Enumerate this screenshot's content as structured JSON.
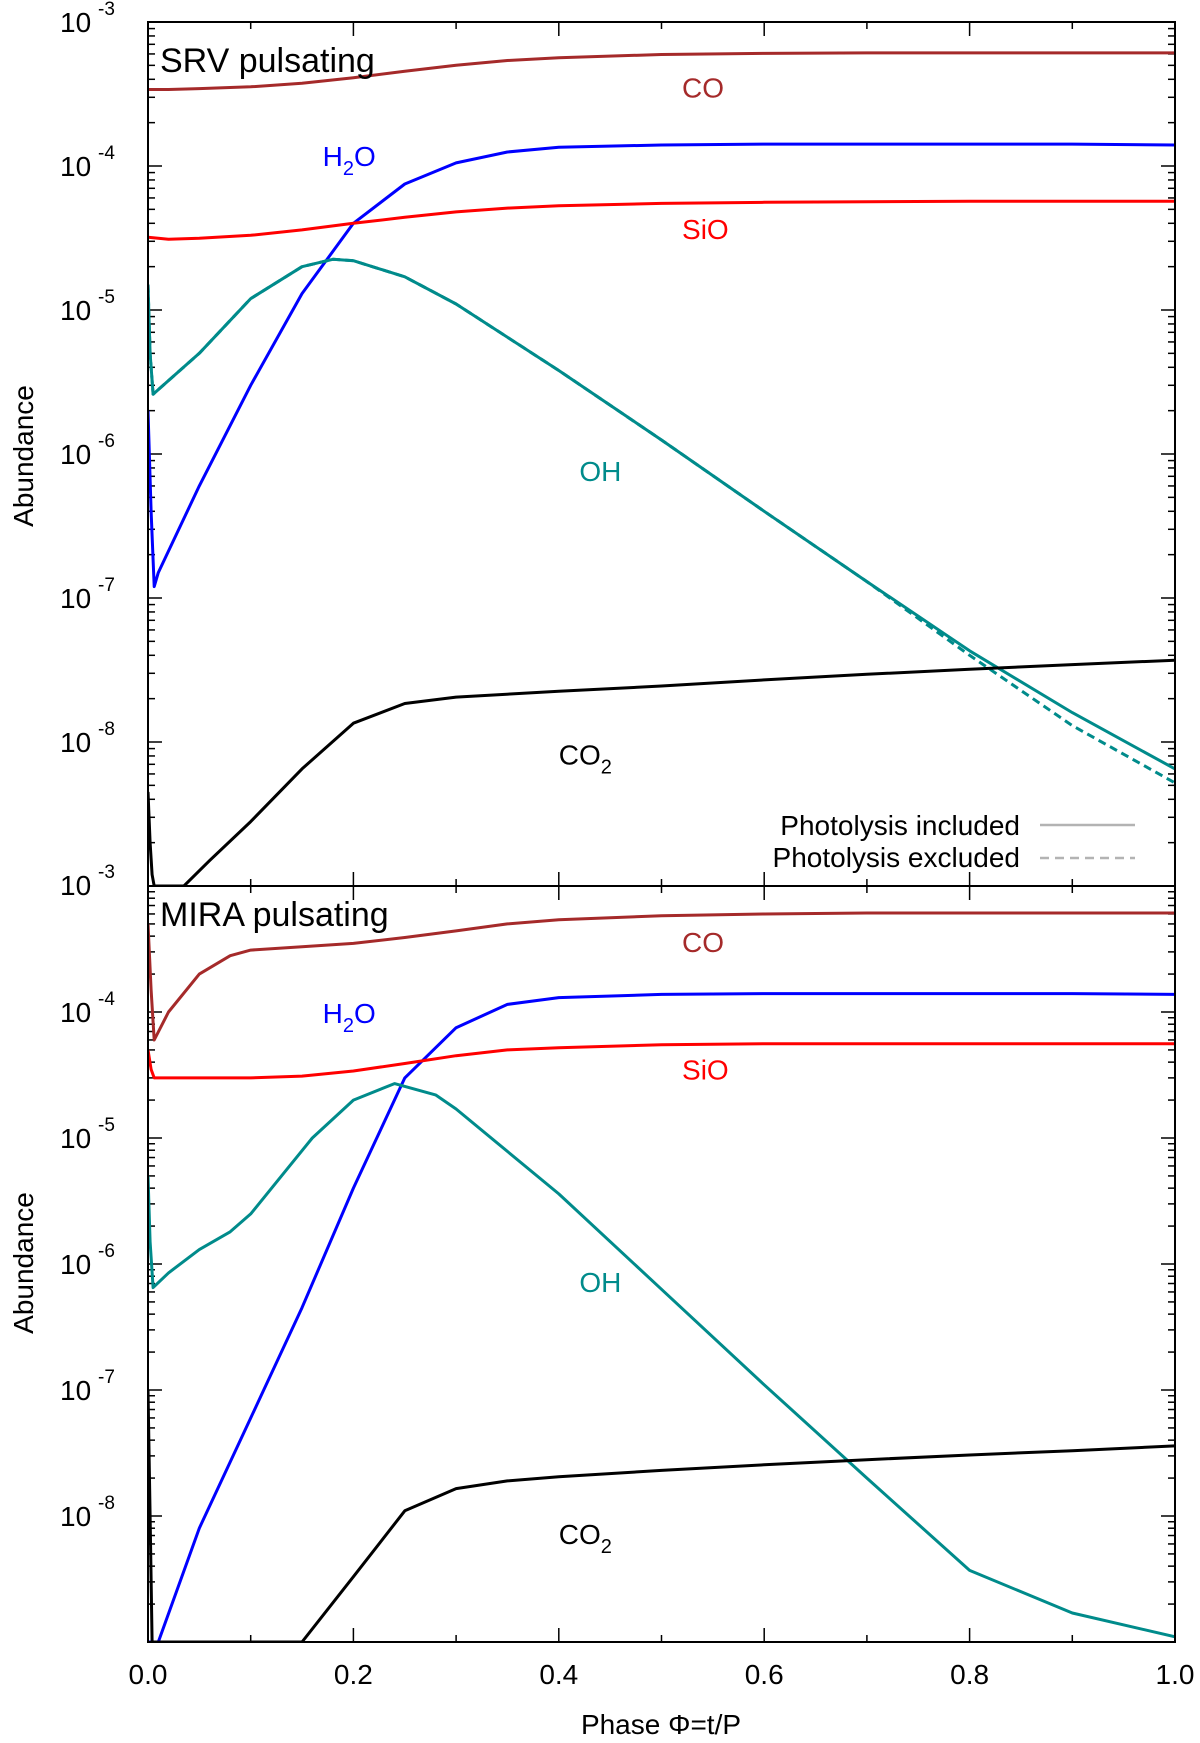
{
  "chart_data": [
    {
      "type": "line",
      "title": "SRV pulsating",
      "xlabel": "",
      "ylabel": "Abundance",
      "yscale": "log",
      "xlim": [
        0,
        1
      ],
      "ylim": [
        1e-09,
        0.001
      ],
      "ytick_values": [
        1e-08,
        1e-07,
        1e-06,
        1e-05,
        0.0001,
        0.001
      ],
      "ytick_labels": [
        {
          "base": "10",
          "exp": "-8"
        },
        {
          "base": "10",
          "exp": "-7"
        },
        {
          "base": "10",
          "exp": "-6"
        },
        {
          "base": "10",
          "exp": "-5"
        },
        {
          "base": "10",
          "exp": "-4"
        },
        {
          "base": "10",
          "exp": "-3"
        }
      ],
      "bottom_tick_label": {
        "base": "10",
        "exp": "-3"
      },
      "legend": {
        "position": "bottom-right",
        "entries": [
          {
            "label": "Photolysis included",
            "style": "solid",
            "color": "#b3b3b3"
          },
          {
            "label": "Photolysis excluded",
            "style": "dashed",
            "color": "#b3b3b3"
          }
        ]
      },
      "series": [
        {
          "name": "CO",
          "label_main": "CO",
          "label_sub": "",
          "color": "#a52a2a",
          "label_x": 0.52,
          "label_y": 0.0003,
          "x": [
            0.0,
            0.02,
            0.05,
            0.1,
            0.15,
            0.2,
            0.25,
            0.3,
            0.35,
            0.4,
            0.5,
            0.6,
            0.7,
            0.8,
            0.9,
            1.0
          ],
          "y": [
            0.00034,
            0.00034,
            0.000345,
            0.000355,
            0.000375,
            0.00041,
            0.000455,
            0.0005,
            0.00054,
            0.000565,
            0.000595,
            0.000605,
            0.00061,
            0.00061,
            0.00061,
            0.00061
          ]
        },
        {
          "name": "H2O",
          "label_main": "H",
          "label_sub": "2",
          "label_tail": "O",
          "color": "#0000ff",
          "label_x": 0.17,
          "label_y": 0.0001,
          "x": [
            0.0,
            0.003,
            0.006,
            0.01,
            0.05,
            0.1,
            0.15,
            0.2,
            0.25,
            0.3,
            0.35,
            0.4,
            0.5,
            0.6,
            0.7,
            0.8,
            0.9,
            1.0
          ],
          "y": [
            2e-06,
            4e-07,
            1.2e-07,
            1.5e-07,
            6e-07,
            3e-06,
            1.3e-05,
            4e-05,
            7.5e-05,
            0.000105,
            0.000125,
            0.000135,
            0.00014,
            0.000142,
            0.000142,
            0.000142,
            0.000142,
            0.00014
          ]
        },
        {
          "name": "SiO",
          "label_main": "SiO",
          "label_sub": "",
          "color": "#ff0000",
          "label_x": 0.52,
          "label_y": 3.1e-05,
          "x": [
            0.0,
            0.02,
            0.05,
            0.1,
            0.15,
            0.2,
            0.25,
            0.3,
            0.35,
            0.4,
            0.5,
            0.6,
            0.7,
            0.8,
            0.9,
            1.0
          ],
          "y": [
            3.2e-05,
            3.1e-05,
            3.15e-05,
            3.3e-05,
            3.6e-05,
            4e-05,
            4.4e-05,
            4.8e-05,
            5.1e-05,
            5.3e-05,
            5.5e-05,
            5.6e-05,
            5.65e-05,
            5.7e-05,
            5.7e-05,
            5.7e-05
          ]
        },
        {
          "name": "OH",
          "label_main": "OH",
          "label_sub": "",
          "color": "#008b8b",
          "label_x": 0.42,
          "label_y": 6.5e-07,
          "x": [
            0.0,
            0.002,
            0.005,
            0.05,
            0.1,
            0.15,
            0.18,
            0.2,
            0.25,
            0.3,
            0.4,
            0.5,
            0.6,
            0.7,
            0.8,
            0.9,
            1.0
          ],
          "y": [
            1.5e-05,
            5e-06,
            2.6e-06,
            5e-06,
            1.2e-05,
            2e-05,
            2.25e-05,
            2.2e-05,
            1.7e-05,
            1.1e-05,
            3.8e-06,
            1.25e-06,
            4e-07,
            1.3e-07,
            4.3e-08,
            1.6e-08,
            6.5e-09
          ],
          "y_excluded": [
            1.5e-05,
            5e-06,
            2.6e-06,
            5e-06,
            1.2e-05,
            2e-05,
            2.25e-05,
            2.2e-05,
            1.7e-05,
            1.1e-05,
            3.8e-06,
            1.25e-06,
            4e-07,
            1.3e-07,
            4e-08,
            1.3e-08,
            5.2e-09
          ]
        },
        {
          "name": "CO2",
          "label_main": "CO",
          "label_sub": "2",
          "color": "#000000",
          "label_x": 0.4,
          "label_y": 7e-09,
          "x": [
            0.0,
            0.002,
            0.004,
            0.006,
            0.035,
            0.06,
            0.1,
            0.15,
            0.2,
            0.25,
            0.3,
            0.4,
            0.5,
            0.6,
            0.7,
            0.8,
            0.9,
            1.0
          ],
          "y": [
            4.5e-09,
            2e-09,
            1.2e-09,
            1e-09,
            1e-09,
            1.5e-09,
            2.8e-09,
            6.5e-09,
            1.35e-08,
            1.85e-08,
            2.05e-08,
            2.25e-08,
            2.45e-08,
            2.7e-08,
            2.95e-08,
            3.2e-08,
            3.45e-08,
            3.7e-08
          ]
        }
      ]
    },
    {
      "type": "line",
      "title": "MIRA pulsating",
      "xlabel": "Phase Φ=t/P",
      "ylabel": "Abundance",
      "yscale": "log",
      "xlim": [
        0,
        1
      ],
      "ylim": [
        1e-09,
        0.001
      ],
      "ytick_values": [
        1e-08,
        1e-07,
        1e-06,
        1e-05,
        0.0001
      ],
      "ytick_labels": [
        {
          "base": "10",
          "exp": "-8"
        },
        {
          "base": "10",
          "exp": "-7"
        },
        {
          "base": "10",
          "exp": "-6"
        },
        {
          "base": "10",
          "exp": "-5"
        },
        {
          "base": "10",
          "exp": "-4"
        }
      ],
      "xtick_labels": [
        "0.0",
        "0.2",
        "0.4",
        "0.6",
        "0.8",
        "1.0"
      ],
      "xtick_values": [
        0,
        0.2,
        0.4,
        0.6,
        0.8,
        1.0
      ],
      "series": [
        {
          "name": "CO",
          "label_main": "CO",
          "label_sub": "",
          "color": "#a52a2a",
          "label_x": 0.52,
          "label_y": 0.0003,
          "x": [
            0.0,
            0.003,
            0.006,
            0.02,
            0.05,
            0.08,
            0.1,
            0.15,
            0.2,
            0.25,
            0.3,
            0.35,
            0.4,
            0.5,
            0.6,
            0.7,
            0.8,
            0.9,
            1.0
          ],
          "y": [
            0.0005,
            0.00015,
            6e-05,
            0.0001,
            0.0002,
            0.00028,
            0.00031,
            0.00033,
            0.00035,
            0.00039,
            0.00044,
            0.0005,
            0.00054,
            0.00058,
            0.0006,
            0.00061,
            0.00061,
            0.00061,
            0.00061
          ]
        },
        {
          "name": "H2O",
          "label_main": "H",
          "label_sub": "2",
          "label_tail": "O",
          "color": "#0000ff",
          "label_x": 0.17,
          "label_y": 8.2e-05,
          "x": [
            0.0,
            0.003,
            0.005,
            0.01,
            0.05,
            0.1,
            0.15,
            0.2,
            0.25,
            0.3,
            0.35,
            0.4,
            0.5,
            0.6,
            0.7,
            0.8,
            0.9,
            1.0
          ],
          "y": [
            1e-09,
            1e-09,
            1e-09,
            1e-09,
            8e-09,
            6e-08,
            4.5e-07,
            4e-06,
            3e-05,
            7.5e-05,
            0.000115,
            0.00013,
            0.000138,
            0.00014,
            0.00014,
            0.00014,
            0.00014,
            0.000138
          ]
        },
        {
          "name": "SiO",
          "label_main": "SiO",
          "label_sub": "",
          "color": "#ff0000",
          "label_x": 0.52,
          "label_y": 2.9e-05,
          "x": [
            0.0,
            0.003,
            0.006,
            0.02,
            0.05,
            0.1,
            0.15,
            0.2,
            0.25,
            0.3,
            0.35,
            0.4,
            0.5,
            0.6,
            0.7,
            0.8,
            0.9,
            1.0
          ],
          "y": [
            5e-05,
            3.5e-05,
            3e-05,
            3e-05,
            3e-05,
            3e-05,
            3.1e-05,
            3.4e-05,
            3.9e-05,
            4.5e-05,
            5e-05,
            5.2e-05,
            5.5e-05,
            5.6e-05,
            5.6e-05,
            5.6e-05,
            5.6e-05,
            5.6e-05
          ]
        },
        {
          "name": "OH",
          "label_main": "OH",
          "label_sub": "",
          "color": "#008b8b",
          "label_x": 0.42,
          "label_y": 6e-07,
          "x": [
            0.0,
            0.002,
            0.005,
            0.02,
            0.05,
            0.08,
            0.1,
            0.13,
            0.16,
            0.2,
            0.24,
            0.28,
            0.3,
            0.4,
            0.5,
            0.6,
            0.7,
            0.8,
            0.9,
            1.0
          ],
          "y": [
            5e-06,
            1.5e-06,
            6.5e-07,
            8.5e-07,
            1.3e-06,
            1.8e-06,
            2.5e-06,
            5e-06,
            1e-05,
            2e-05,
            2.7e-05,
            2.2e-05,
            1.7e-05,
            3.6e-06,
            6.3e-07,
            1.1e-07,
            2e-08,
            3.7e-09,
            1.7e-09,
            1.1e-09
          ]
        },
        {
          "name": "CO2",
          "label_main": "CO",
          "label_sub": "2",
          "color": "#000000",
          "label_x": 0.4,
          "label_y": 6e-09,
          "x": [
            0.0,
            0.002,
            0.004,
            0.006,
            0.15,
            0.2,
            0.25,
            0.3,
            0.35,
            0.4,
            0.5,
            0.6,
            0.7,
            0.8,
            0.9,
            1.0
          ],
          "y": [
            1e-07,
            1e-08,
            1e-09,
            1e-09,
            1e-09,
            3.3e-09,
            1.1e-08,
            1.65e-08,
            1.9e-08,
            2.05e-08,
            2.3e-08,
            2.55e-08,
            2.8e-08,
            3.05e-08,
            3.3e-08,
            3.6e-08
          ]
        }
      ]
    }
  ]
}
